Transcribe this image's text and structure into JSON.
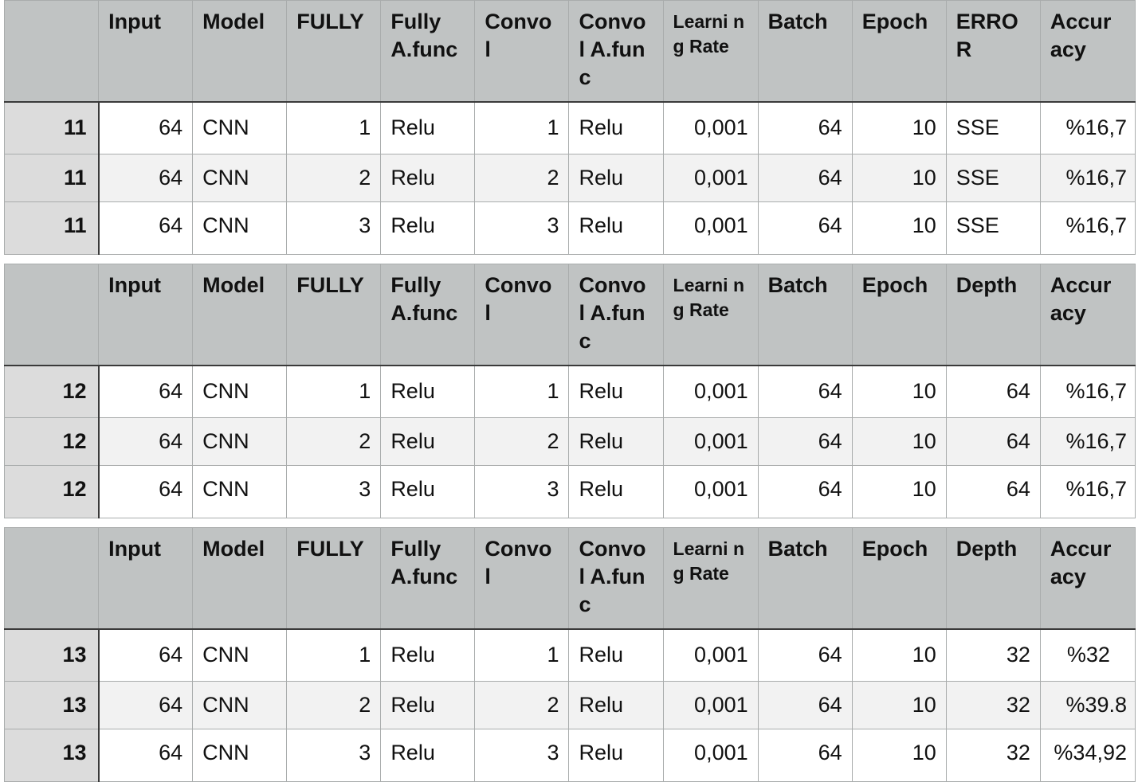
{
  "tables": [
    {
      "headers": [
        "",
        "Input",
        "Model",
        "FULLY",
        "Fully A.func",
        "Convo l",
        "Convo l A.func",
        "Learni ng Rate",
        "Batch",
        "Epoch",
        "ERRO R",
        "Accur acy"
      ],
      "rows": [
        [
          "11",
          "64",
          "CNN",
          "1",
          "Relu",
          "1",
          "Relu",
          "0,001",
          "64",
          "10",
          "SSE",
          "%16,7"
        ],
        [
          "11",
          "64",
          "CNN",
          "2",
          "Relu",
          "2",
          "Relu",
          "0,001",
          "64",
          "10",
          "SSE",
          "%16,7"
        ],
        [
          "11",
          "64",
          "CNN",
          "3",
          "Relu",
          "3",
          "Relu",
          "0,001",
          "64",
          "10",
          "SSE",
          "%16,7"
        ]
      ]
    },
    {
      "headers": [
        "",
        "Input",
        "Model",
        "FULLY",
        "Fully A.func",
        "Convo l",
        "Convo l A.func",
        "Learni ng Rate",
        "Batch",
        "Epoch",
        "Depth",
        "Accur acy"
      ],
      "rows": [
        [
          "12",
          "64",
          "CNN",
          "1",
          "Relu",
          "1",
          "Relu",
          "0,001",
          "64",
          "10",
          "64",
          "%16,7"
        ],
        [
          "12",
          "64",
          "CNN",
          "2",
          "Relu",
          "2",
          "Relu",
          "0,001",
          "64",
          "10",
          "64",
          "%16,7"
        ],
        [
          "12",
          "64",
          "CNN",
          "3",
          "Relu",
          "3",
          "Relu",
          "0,001",
          "64",
          "10",
          "64",
          "%16,7"
        ]
      ]
    },
    {
      "headers": [
        "",
        "Input",
        "Model",
        "FULLY",
        "Fully A.func",
        "Convo l",
        "Convo l A.func",
        "Learni ng Rate",
        "Batch",
        "Epoch",
        "Depth",
        "Accur acy"
      ],
      "rows": [
        [
          "13",
          "64",
          "CNN",
          "1",
          "Relu",
          "1",
          "Relu",
          "0,001",
          "64",
          "10",
          "32",
          "%32"
        ],
        [
          "13",
          "64",
          "CNN",
          "2",
          "Relu",
          "2",
          "Relu",
          "0,001",
          "64",
          "10",
          "32",
          "%39.8"
        ],
        [
          "13",
          "64",
          "CNN",
          "3",
          "Relu",
          "3",
          "Relu",
          "0,001",
          "64",
          "10",
          "32",
          "%34,92"
        ]
      ]
    }
  ],
  "colors": {
    "header_bg": "#c0c3c3",
    "id_col_bg": "#dcdcdc",
    "alt_row_bg": "#f2f2f2",
    "grid": "#a9acac",
    "separator": "#3a3a3a"
  }
}
